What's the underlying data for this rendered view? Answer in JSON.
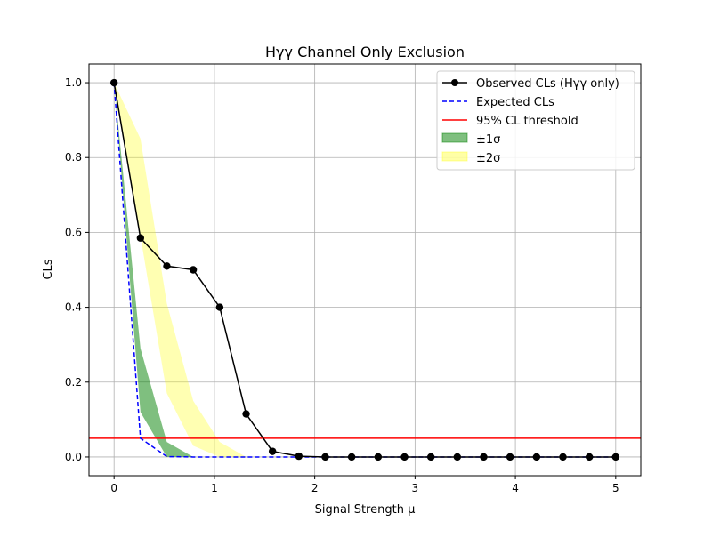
{
  "chart_data": {
    "type": "line",
    "title": "Hγγ Channel Only Exclusion",
    "xlabel": "Signal Strength μ",
    "ylabel": "CLs",
    "xlim": [
      -0.25,
      5.25
    ],
    "ylim": [
      -0.05,
      1.05
    ],
    "xticks": [
      0,
      1,
      2,
      3,
      4,
      5
    ],
    "xtick_labels": [
      "0",
      "1",
      "2",
      "3",
      "4",
      "5"
    ],
    "yticks": [
      0.0,
      0.2,
      0.4,
      0.6,
      0.8,
      1.0
    ],
    "ytick_labels": [
      "0.0",
      "0.2",
      "0.4",
      "0.6",
      "0.8",
      "1.0"
    ],
    "grid": true,
    "legend_position": "top-right",
    "threshold": 0.05,
    "mu": [
      0,
      0.263,
      0.526,
      0.789,
      1.053,
      1.316,
      1.579,
      1.842,
      2.105,
      2.368,
      2.632,
      2.895,
      3.158,
      3.421,
      3.684,
      3.947,
      4.211,
      4.474,
      4.737,
      5.0
    ],
    "observed": [
      1.0,
      0.585,
      0.51,
      0.5,
      0.4,
      0.115,
      0.015,
      0.002,
      0.0,
      0.0,
      0.0,
      0.0,
      0.0,
      0.0,
      0.0,
      0.0,
      0.0,
      0.0,
      0.0,
      0.0
    ],
    "expected": [
      1.0,
      0.05,
      0.001,
      0.0,
      0.0,
      0.0,
      0.0,
      0.0,
      0.0,
      0.0,
      0.0,
      0.0,
      0.0,
      0.0,
      0.0,
      0.0,
      0.0,
      0.0,
      0.0,
      0.0
    ],
    "band_1sigma": {
      "lower": [
        1.0,
        0.12,
        0.0,
        0.0,
        0.0,
        0.0,
        0.0,
        0.0,
        0.0,
        0.0,
        0.0,
        0.0,
        0.0,
        0.0,
        0.0,
        0.0,
        0.0,
        0.0,
        0.0,
        0.0
      ],
      "upper": [
        1.0,
        0.29,
        0.04,
        0.0,
        0.0,
        0.0,
        0.0,
        0.0,
        0.0,
        0.0,
        0.0,
        0.0,
        0.0,
        0.0,
        0.0,
        0.0,
        0.0,
        0.0,
        0.0,
        0.0
      ]
    },
    "band_2sigma": {
      "lower": [
        1.0,
        0.59,
        0.17,
        0.03,
        0.0,
        0.0,
        0.0,
        0.0,
        0.0,
        0.0,
        0.0,
        0.0,
        0.0,
        0.0,
        0.0,
        0.0,
        0.0,
        0.0,
        0.0,
        0.0
      ],
      "upper": [
        1.0,
        0.85,
        0.41,
        0.15,
        0.04,
        0.0,
        0.0,
        0.0,
        0.0,
        0.0,
        0.0,
        0.0,
        0.0,
        0.0,
        0.0,
        0.0,
        0.0,
        0.0,
        0.0,
        0.0
      ]
    },
    "series": [
      {
        "name": "Observed CLs (Hγγ only)",
        "color": "#000000"
      },
      {
        "name": "Expected CLs",
        "color": "#0000ff"
      },
      {
        "name": "95% CL threshold",
        "color": "#ff0000"
      },
      {
        "name": "±1σ",
        "color": "#008000"
      },
      {
        "name": "±2σ",
        "color": "#ffff00"
      }
    ]
  }
}
